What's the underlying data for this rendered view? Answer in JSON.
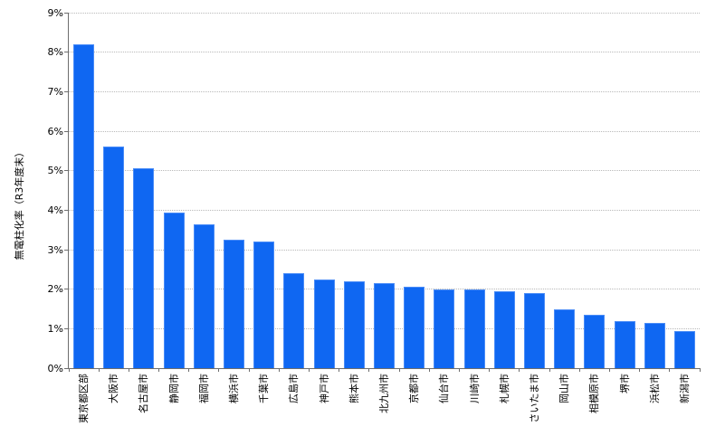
{
  "chart_data": {
    "type": "bar",
    "title": "",
    "xlabel": "",
    "ylabel": "無電柱化率（R3年度末）",
    "ylim": [
      0,
      9
    ],
    "y_ticks": [
      "0%",
      "1%",
      "2%",
      "3%",
      "4%",
      "5%",
      "6%",
      "7%",
      "8%",
      "9%"
    ],
    "grid": "horizontal-dotted",
    "legend_position": "none",
    "categories": [
      "東京都区部",
      "大阪市",
      "名古屋市",
      "静岡市",
      "福岡市",
      "横浜市",
      "千葉市",
      "広島市",
      "神戸市",
      "熊本市",
      "北九州市",
      "京都市",
      "仙台市",
      "川崎市",
      "札幌市",
      "さいたま市",
      "岡山市",
      "相模原市",
      "堺市",
      "浜松市",
      "新潟市"
    ],
    "values": [
      8.2,
      5.6,
      5.05,
      3.95,
      3.65,
      3.25,
      3.2,
      2.4,
      2.25,
      2.2,
      2.15,
      2.05,
      2.0,
      2.0,
      1.95,
      1.9,
      1.5,
      1.35,
      1.2,
      1.15,
      0.95
    ],
    "bar_color": "#0f67f2",
    "bar_border_color": "#4a8cf7",
    "gridline_color": "#b9b9b9",
    "axis_color": "#6e6e6e",
    "text_color": "#000000"
  }
}
